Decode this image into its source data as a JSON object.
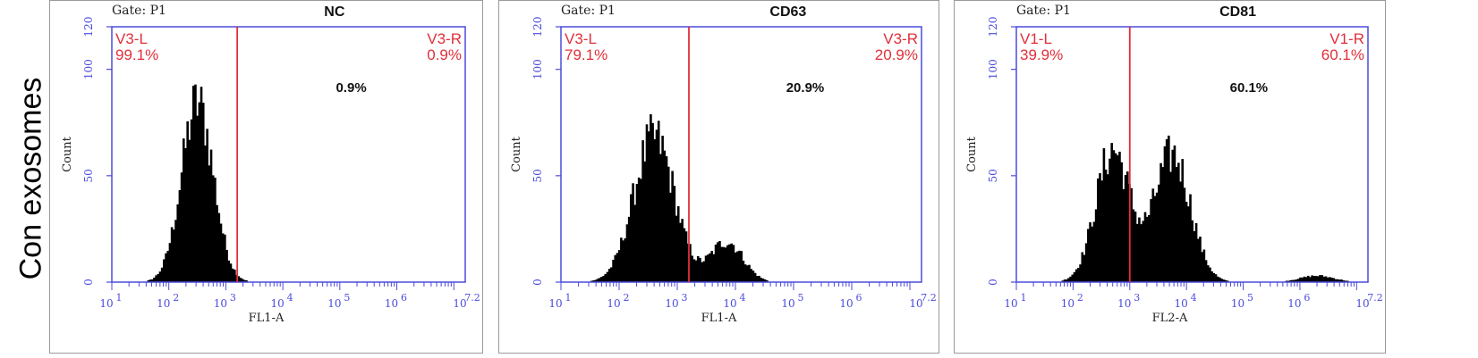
{
  "row_label": "Con exosomes",
  "colors": {
    "axis": "#4b4bdc",
    "gate_line": "#e0303a",
    "gate_text": "#e0303a",
    "histogram": "#000000"
  },
  "chart_data": [
    {
      "type": "histogram",
      "gate": "Gate:  P1",
      "title": "NC",
      "xlabel": "FL1-A",
      "ylabel": "Count",
      "y_ticks": [
        "0",
        "50",
        "100",
        "120"
      ],
      "x_ticks": [
        "1",
        "2",
        "3",
        "4",
        "5",
        "6",
        "7.2"
      ],
      "ylim": [
        0,
        120
      ],
      "xlim": [
        1,
        7.2
      ],
      "x_scale": "log10",
      "gate_x": 3.2,
      "left_region": {
        "name": "V3-L",
        "pct": "99.1%"
      },
      "right_region": {
        "name": "V3-R",
        "pct": "0.9%"
      },
      "annotation": "0.9%",
      "peaks": [
        {
          "center": 2.5,
          "sigma": 0.28,
          "height": 84
        }
      ]
    },
    {
      "type": "histogram",
      "gate": "Gate:  P1",
      "title": "CD63",
      "xlabel": "FL1-A",
      "ylabel": "Count",
      "y_ticks": [
        "0",
        "50",
        "100",
        "120"
      ],
      "x_ticks": [
        "1",
        "2",
        "3",
        "4",
        "5",
        "6",
        "7.2"
      ],
      "ylim": [
        0,
        120
      ],
      "xlim": [
        1,
        7.2
      ],
      "x_scale": "log10",
      "gate_x": 3.2,
      "left_region": {
        "name": "V3-L",
        "pct": "79.1%"
      },
      "right_region": {
        "name": "V3-R",
        "pct": "20.9%"
      },
      "annotation": "20.9%",
      "peaks": [
        {
          "center": 2.6,
          "sigma": 0.35,
          "height": 68
        },
        {
          "center": 3.85,
          "sigma": 0.28,
          "height": 19
        }
      ]
    },
    {
      "type": "histogram",
      "gate": "Gate:  P1",
      "title": "CD81",
      "xlabel": "FL2-A",
      "ylabel": "Count",
      "y_ticks": [
        "0",
        "50",
        "100",
        "120"
      ],
      "x_ticks": [
        "1",
        "2",
        "3",
        "4",
        "5",
        "6",
        "7.2"
      ],
      "ylim": [
        0,
        120
      ],
      "xlim": [
        1,
        7.2
      ],
      "x_scale": "log10",
      "gate_x": 3.0,
      "left_region": {
        "name": "V1-L",
        "pct": "39.9%"
      },
      "right_region": {
        "name": "V1-R",
        "pct": "60.1%"
      },
      "annotation": "60.1%",
      "peaks": [
        {
          "center": 2.7,
          "sigma": 0.3,
          "height": 62
        },
        {
          "center": 3.75,
          "sigma": 0.32,
          "height": 60
        },
        {
          "center": 6.3,
          "sigma": 0.3,
          "height": 3
        }
      ]
    }
  ]
}
